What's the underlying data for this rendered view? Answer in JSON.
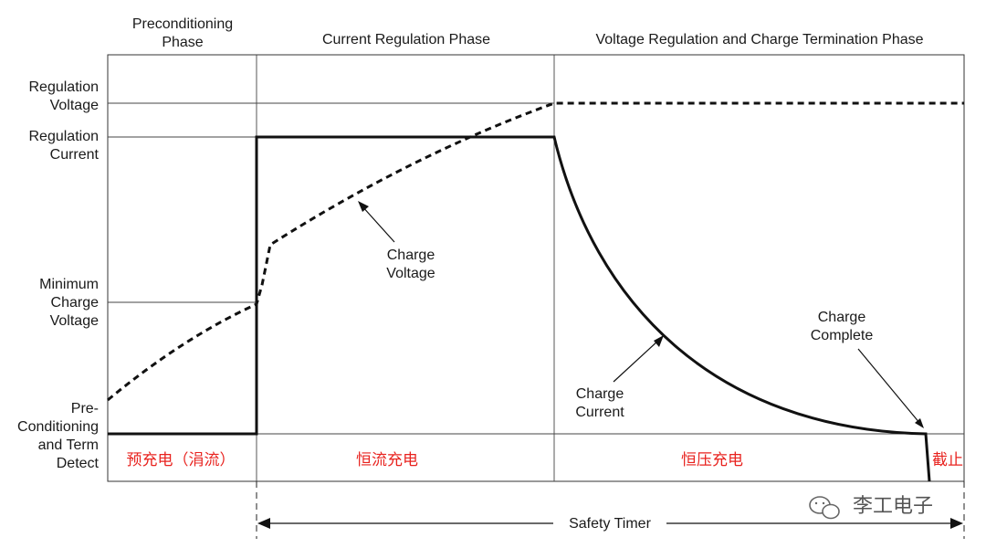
{
  "phases": {
    "preconditioning_line1": "Preconditioning",
    "preconditioning_line2": "Phase",
    "current_regulation": "Current Regulation Phase",
    "voltage_regulation": "Voltage Regulation and Charge Termination Phase"
  },
  "y_labels": {
    "regulation_voltage": [
      "Regulation",
      "Voltage"
    ],
    "regulation_current": [
      "Regulation",
      "Current"
    ],
    "minimum_charge_voltage": [
      "Minimum",
      "Charge",
      "Voltage"
    ],
    "precond_term_detect": [
      "Pre-",
      "Conditioning",
      "and Term",
      "Detect"
    ]
  },
  "annotations": {
    "charge_voltage": [
      "Charge",
      "Voltage"
    ],
    "charge_current": [
      "Charge",
      "Current"
    ],
    "charge_complete": [
      "Charge",
      "Complete"
    ]
  },
  "bottom_labels": {
    "trickle": "预充电（涓流）",
    "constant_current": "恒流充电",
    "constant_voltage": "恒压充电",
    "cutoff": "截止",
    "color": "#e8231f"
  },
  "safety_timer": "Safety Timer",
  "watermark": "李工电子"
}
